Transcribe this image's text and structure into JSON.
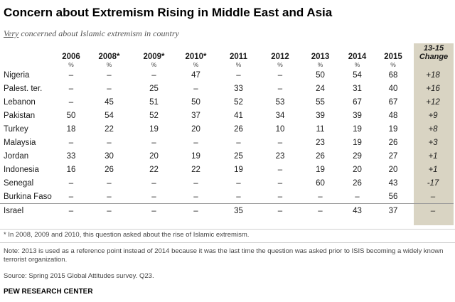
{
  "title": "Concern about Extremism Rising in Middle East and Asia",
  "subtitle_underlined": "Very",
  "subtitle_rest": " concerned about Islamic extremism in country",
  "columns": [
    "2006",
    "2008*",
    "2009*",
    "2010*",
    "2011",
    "2012",
    "2013",
    "2014",
    "2015"
  ],
  "change_header": [
    "13-15",
    "Change"
  ],
  "pct_label": "%",
  "rows": [
    {
      "country": "Nigeria",
      "values": [
        "–",
        "–",
        "–",
        "47",
        "–",
        "–",
        "50",
        "54",
        "68"
      ],
      "change": "+18"
    },
    {
      "country": "Palest. ter.",
      "values": [
        "–",
        "–",
        "25",
        "–",
        "33",
        "–",
        "24",
        "31",
        "40"
      ],
      "change": "+16"
    },
    {
      "country": "Lebanon",
      "values": [
        "–",
        "45",
        "51",
        "50",
        "52",
        "53",
        "55",
        "67",
        "67"
      ],
      "change": "+12"
    },
    {
      "country": "Pakistan",
      "values": [
        "50",
        "54",
        "52",
        "37",
        "41",
        "34",
        "39",
        "39",
        "48"
      ],
      "change": "+9"
    },
    {
      "country": "Turkey",
      "values": [
        "18",
        "22",
        "19",
        "20",
        "26",
        "10",
        "11",
        "19",
        "19"
      ],
      "change": "+8"
    },
    {
      "country": "Malaysia",
      "values": [
        "–",
        "–",
        "–",
        "–",
        "–",
        "–",
        "23",
        "19",
        "26"
      ],
      "change": "+3"
    },
    {
      "country": "Jordan",
      "values": [
        "33",
        "30",
        "20",
        "19",
        "25",
        "23",
        "26",
        "29",
        "27"
      ],
      "change": "+1"
    },
    {
      "country": "Indonesia",
      "values": [
        "16",
        "26",
        "22",
        "22",
        "19",
        "–",
        "19",
        "20",
        "20"
      ],
      "change": "+1"
    },
    {
      "country": "Senegal",
      "values": [
        "–",
        "–",
        "–",
        "–",
        "–",
        "–",
        "60",
        "26",
        "43"
      ],
      "change": "-17"
    },
    {
      "country": "Burkina Faso",
      "values": [
        "–",
        "–",
        "–",
        "–",
        "–",
        "–",
        "–",
        "–",
        "56"
      ],
      "change": "–"
    },
    {
      "country": "Israel",
      "values": [
        "–",
        "–",
        "–",
        "–",
        "35",
        "–",
        "–",
        "43",
        "37"
      ],
      "change": "–"
    }
  ],
  "footnote1": "* In 2008, 2009 and 2010, this question asked about the rise of Islamic extremism.",
  "footnote2": "Note: 2013 is used as a reference point instead of 2014 because it was the last time the question was asked prior to ISIS becoming a widely known terrorist organization.",
  "source": "Source: Spring 2015 Global Attitudes survey. Q23.",
  "org": "PEW RESEARCH CENTER"
}
